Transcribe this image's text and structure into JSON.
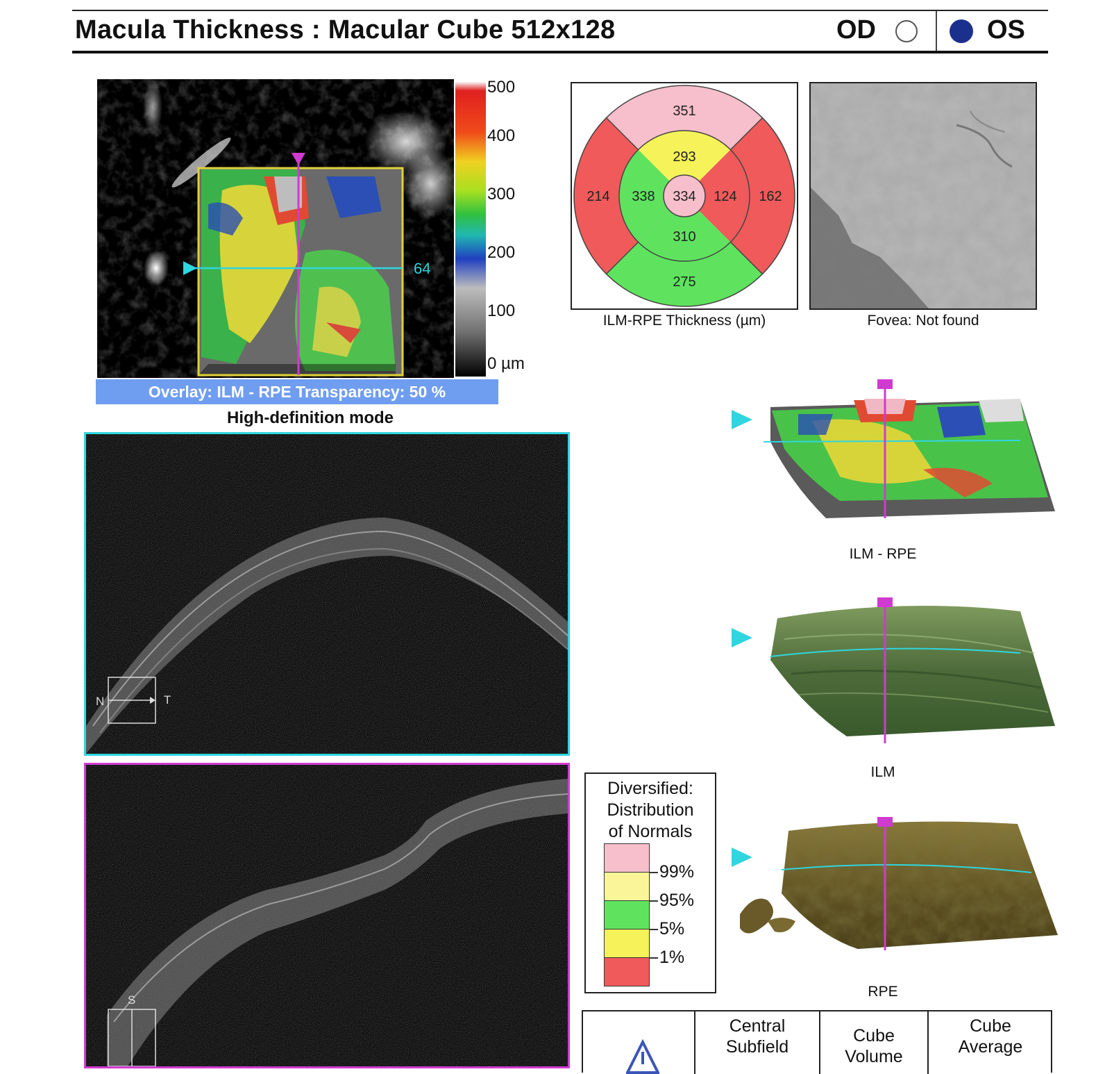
{
  "header": {
    "title": "Macula Thickness : Macular Cube 512x128",
    "od_label": "OD",
    "os_label": "OS"
  },
  "fundus": {
    "scan_index": "64",
    "scale_ticks": [
      "500",
      "400",
      "300",
      "200",
      "100",
      "0 µm"
    ],
    "overlay_text": "Overlay: ILM - RPE  Transparency: 50 %",
    "mode_text": "High-definition mode"
  },
  "etdrs": {
    "caption": "ILM-RPE Thickness (µm)",
    "values": {
      "outer_superior": "351",
      "inner_superior": "293",
      "outer_left": "214",
      "inner_left": "338",
      "center": "334",
      "inner_right": "124",
      "outer_right": "162",
      "inner_inferior": "310",
      "outer_inferior": "275"
    },
    "colors": {
      "pink": "#f7bfcb",
      "yellow": "#f5f25a",
      "green": "#5fe35f",
      "red": "#f05a5a"
    }
  },
  "fovea": {
    "caption": "Fovea: Not found"
  },
  "scans": {
    "horizontal": {
      "left": "N",
      "right": "T"
    },
    "vertical": {
      "top": "S"
    }
  },
  "surfaces": [
    {
      "label": "ILM - RPE"
    },
    {
      "label": "ILM"
    },
    {
      "label": "RPE"
    }
  ],
  "legend": {
    "title_lines": [
      "Diversified:",
      "Distribution",
      "of Normals"
    ],
    "percentiles": [
      "99%",
      "95%",
      "5%",
      "1%"
    ]
  },
  "table": {
    "headers": [
      {
        "line1": "Central",
        "line2": "Subfield"
      },
      {
        "line1": "Cube",
        "line2": "Volume"
      },
      {
        "line1": "Cube",
        "line2": "Average"
      }
    ]
  }
}
